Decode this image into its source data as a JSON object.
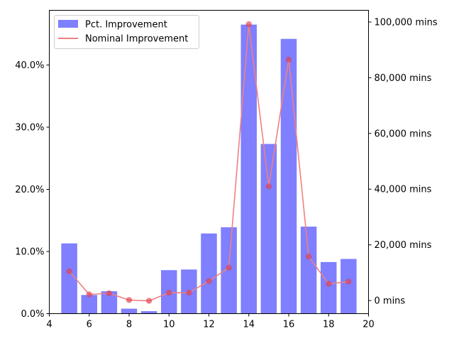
{
  "chart_data": {
    "type": "bar+line",
    "x": [
      5,
      6,
      7,
      8,
      9,
      10,
      11,
      12,
      13,
      14,
      15,
      16,
      17,
      18,
      19
    ],
    "series": [
      {
        "name": "Pct. Improvement",
        "kind": "bar",
        "axis": "left",
        "color": "#7f7fff",
        "values": [
          11.3,
          3.0,
          3.6,
          0.8,
          0.4,
          7.0,
          7.1,
          12.9,
          13.9,
          46.5,
          27.3,
          44.2,
          14.0,
          8.3,
          8.8
        ]
      },
      {
        "name": "Nominal Improvement",
        "kind": "line",
        "axis": "right",
        "color": "#f08080",
        "marker_color": "#e04050",
        "values": [
          10500,
          2200,
          2600,
          200,
          -100,
          2800,
          2800,
          7000,
          11800,
          99200,
          41000,
          86500,
          15800,
          6000,
          6800
        ]
      }
    ],
    "xlim": [
      4,
      20
    ],
    "xticks": [
      4,
      6,
      8,
      10,
      12,
      14,
      16,
      18,
      20
    ],
    "left_axis": {
      "ylim": [
        0,
        48.8
      ],
      "ticks": [
        0,
        10,
        20,
        30,
        40
      ],
      "tick_labels": [
        "0.0%",
        "10.0%",
        "20.0%",
        "30.0%",
        "40.0%"
      ]
    },
    "right_axis": {
      "ylim": [
        -4700,
        104200
      ],
      "ticks": [
        0,
        20000,
        40000,
        60000,
        80000,
        100000
      ],
      "tick_labels": [
        "0 mins",
        "20,000 mins",
        "40,000 mins",
        "60,000 mins",
        "80,000 mins",
        "100,000 mins"
      ]
    },
    "legend": {
      "placement": "top-left",
      "entries": [
        "Pct. Improvement",
        "Nominal Improvement"
      ]
    },
    "grid": false
  }
}
